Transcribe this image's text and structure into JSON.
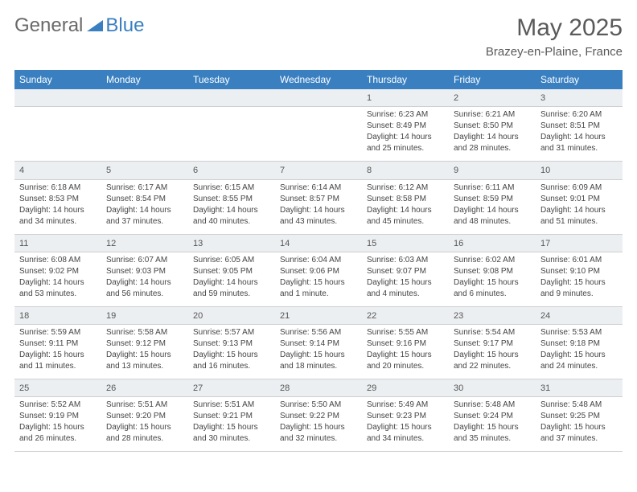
{
  "brand": {
    "part1": "General",
    "part2": "Blue"
  },
  "title": "May 2025",
  "location": "Brazey-en-Plaine, France",
  "colors": {
    "header_bg": "#3a80c1",
    "header_text": "#ffffff",
    "stripe_bg": "#eceff1",
    "border": "#cfcfcf"
  },
  "weekdays": [
    "Sunday",
    "Monday",
    "Tuesday",
    "Wednesday",
    "Thursday",
    "Friday",
    "Saturday"
  ],
  "weeks": [
    [
      null,
      null,
      null,
      null,
      {
        "n": "1",
        "sr": "Sunrise: 6:23 AM",
        "ss": "Sunset: 8:49 PM",
        "d1": "Daylight: 14 hours",
        "d2": "and 25 minutes."
      },
      {
        "n": "2",
        "sr": "Sunrise: 6:21 AM",
        "ss": "Sunset: 8:50 PM",
        "d1": "Daylight: 14 hours",
        "d2": "and 28 minutes."
      },
      {
        "n": "3",
        "sr": "Sunrise: 6:20 AM",
        "ss": "Sunset: 8:51 PM",
        "d1": "Daylight: 14 hours",
        "d2": "and 31 minutes."
      }
    ],
    [
      {
        "n": "4",
        "sr": "Sunrise: 6:18 AM",
        "ss": "Sunset: 8:53 PM",
        "d1": "Daylight: 14 hours",
        "d2": "and 34 minutes."
      },
      {
        "n": "5",
        "sr": "Sunrise: 6:17 AM",
        "ss": "Sunset: 8:54 PM",
        "d1": "Daylight: 14 hours",
        "d2": "and 37 minutes."
      },
      {
        "n": "6",
        "sr": "Sunrise: 6:15 AM",
        "ss": "Sunset: 8:55 PM",
        "d1": "Daylight: 14 hours",
        "d2": "and 40 minutes."
      },
      {
        "n": "7",
        "sr": "Sunrise: 6:14 AM",
        "ss": "Sunset: 8:57 PM",
        "d1": "Daylight: 14 hours",
        "d2": "and 43 minutes."
      },
      {
        "n": "8",
        "sr": "Sunrise: 6:12 AM",
        "ss": "Sunset: 8:58 PM",
        "d1": "Daylight: 14 hours",
        "d2": "and 45 minutes."
      },
      {
        "n": "9",
        "sr": "Sunrise: 6:11 AM",
        "ss": "Sunset: 8:59 PM",
        "d1": "Daylight: 14 hours",
        "d2": "and 48 minutes."
      },
      {
        "n": "10",
        "sr": "Sunrise: 6:09 AM",
        "ss": "Sunset: 9:01 PM",
        "d1": "Daylight: 14 hours",
        "d2": "and 51 minutes."
      }
    ],
    [
      {
        "n": "11",
        "sr": "Sunrise: 6:08 AM",
        "ss": "Sunset: 9:02 PM",
        "d1": "Daylight: 14 hours",
        "d2": "and 53 minutes."
      },
      {
        "n": "12",
        "sr": "Sunrise: 6:07 AM",
        "ss": "Sunset: 9:03 PM",
        "d1": "Daylight: 14 hours",
        "d2": "and 56 minutes."
      },
      {
        "n": "13",
        "sr": "Sunrise: 6:05 AM",
        "ss": "Sunset: 9:05 PM",
        "d1": "Daylight: 14 hours",
        "d2": "and 59 minutes."
      },
      {
        "n": "14",
        "sr": "Sunrise: 6:04 AM",
        "ss": "Sunset: 9:06 PM",
        "d1": "Daylight: 15 hours",
        "d2": "and 1 minute."
      },
      {
        "n": "15",
        "sr": "Sunrise: 6:03 AM",
        "ss": "Sunset: 9:07 PM",
        "d1": "Daylight: 15 hours",
        "d2": "and 4 minutes."
      },
      {
        "n": "16",
        "sr": "Sunrise: 6:02 AM",
        "ss": "Sunset: 9:08 PM",
        "d1": "Daylight: 15 hours",
        "d2": "and 6 minutes."
      },
      {
        "n": "17",
        "sr": "Sunrise: 6:01 AM",
        "ss": "Sunset: 9:10 PM",
        "d1": "Daylight: 15 hours",
        "d2": "and 9 minutes."
      }
    ],
    [
      {
        "n": "18",
        "sr": "Sunrise: 5:59 AM",
        "ss": "Sunset: 9:11 PM",
        "d1": "Daylight: 15 hours",
        "d2": "and 11 minutes."
      },
      {
        "n": "19",
        "sr": "Sunrise: 5:58 AM",
        "ss": "Sunset: 9:12 PM",
        "d1": "Daylight: 15 hours",
        "d2": "and 13 minutes."
      },
      {
        "n": "20",
        "sr": "Sunrise: 5:57 AM",
        "ss": "Sunset: 9:13 PM",
        "d1": "Daylight: 15 hours",
        "d2": "and 16 minutes."
      },
      {
        "n": "21",
        "sr": "Sunrise: 5:56 AM",
        "ss": "Sunset: 9:14 PM",
        "d1": "Daylight: 15 hours",
        "d2": "and 18 minutes."
      },
      {
        "n": "22",
        "sr": "Sunrise: 5:55 AM",
        "ss": "Sunset: 9:16 PM",
        "d1": "Daylight: 15 hours",
        "d2": "and 20 minutes."
      },
      {
        "n": "23",
        "sr": "Sunrise: 5:54 AM",
        "ss": "Sunset: 9:17 PM",
        "d1": "Daylight: 15 hours",
        "d2": "and 22 minutes."
      },
      {
        "n": "24",
        "sr": "Sunrise: 5:53 AM",
        "ss": "Sunset: 9:18 PM",
        "d1": "Daylight: 15 hours",
        "d2": "and 24 minutes."
      }
    ],
    [
      {
        "n": "25",
        "sr": "Sunrise: 5:52 AM",
        "ss": "Sunset: 9:19 PM",
        "d1": "Daylight: 15 hours",
        "d2": "and 26 minutes."
      },
      {
        "n": "26",
        "sr": "Sunrise: 5:51 AM",
        "ss": "Sunset: 9:20 PM",
        "d1": "Daylight: 15 hours",
        "d2": "and 28 minutes."
      },
      {
        "n": "27",
        "sr": "Sunrise: 5:51 AM",
        "ss": "Sunset: 9:21 PM",
        "d1": "Daylight: 15 hours",
        "d2": "and 30 minutes."
      },
      {
        "n": "28",
        "sr": "Sunrise: 5:50 AM",
        "ss": "Sunset: 9:22 PM",
        "d1": "Daylight: 15 hours",
        "d2": "and 32 minutes."
      },
      {
        "n": "29",
        "sr": "Sunrise: 5:49 AM",
        "ss": "Sunset: 9:23 PM",
        "d1": "Daylight: 15 hours",
        "d2": "and 34 minutes."
      },
      {
        "n": "30",
        "sr": "Sunrise: 5:48 AM",
        "ss": "Sunset: 9:24 PM",
        "d1": "Daylight: 15 hours",
        "d2": "and 35 minutes."
      },
      {
        "n": "31",
        "sr": "Sunrise: 5:48 AM",
        "ss": "Sunset: 9:25 PM",
        "d1": "Daylight: 15 hours",
        "d2": "and 37 minutes."
      }
    ]
  ]
}
